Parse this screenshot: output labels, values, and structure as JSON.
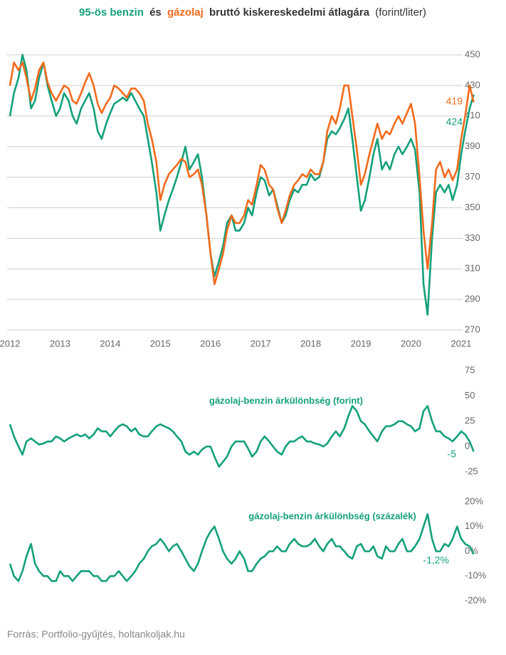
{
  "chart_data": [
    {
      "type": "line",
      "title": [
        "95-ös benzin",
        "és",
        "gázolaj",
        "bruttó kiskereskedelmi átlagára",
        "(forint/liter)"
      ],
      "x": [
        2012.0,
        2012.08,
        2012.17,
        2012.25,
        2012.33,
        2012.42,
        2012.5,
        2012.58,
        2012.67,
        2012.75,
        2012.83,
        2012.92,
        2013.0,
        2013.08,
        2013.17,
        2013.25,
        2013.33,
        2013.42,
        2013.5,
        2013.58,
        2013.67,
        2013.75,
        2013.83,
        2013.92,
        2014.0,
        2014.08,
        2014.17,
        2014.25,
        2014.33,
        2014.42,
        2014.5,
        2014.58,
        2014.67,
        2014.75,
        2014.83,
        2014.92,
        2015.0,
        2015.08,
        2015.17,
        2015.25,
        2015.33,
        2015.42,
        2015.5,
        2015.58,
        2015.67,
        2015.75,
        2015.83,
        2015.92,
        2016.0,
        2016.08,
        2016.17,
        2016.25,
        2016.33,
        2016.42,
        2016.5,
        2016.58,
        2016.67,
        2016.75,
        2016.83,
        2016.92,
        2017.0,
        2017.08,
        2017.17,
        2017.25,
        2017.33,
        2017.42,
        2017.5,
        2017.58,
        2017.67,
        2017.75,
        2017.83,
        2017.92,
        2018.0,
        2018.08,
        2018.17,
        2018.25,
        2018.33,
        2018.42,
        2018.5,
        2018.58,
        2018.67,
        2018.75,
        2018.83,
        2018.92,
        2019.0,
        2019.08,
        2019.17,
        2019.25,
        2019.33,
        2019.42,
        2019.5,
        2019.58,
        2019.67,
        2019.75,
        2019.83,
        2019.92,
        2020.0,
        2020.08,
        2020.17,
        2020.25,
        2020.33,
        2020.42,
        2020.5,
        2020.58,
        2020.67,
        2020.75,
        2020.83,
        2020.92,
        2021.0,
        2021.08,
        2021.17,
        2021.25
      ],
      "series": [
        {
          "name": "95-ös benzin",
          "color": "#13a07b",
          "end_label": 424,
          "values": [
            410,
            425,
            435,
            450,
            440,
            415,
            420,
            435,
            445,
            430,
            420,
            410,
            415,
            425,
            420,
            410,
            405,
            415,
            420,
            425,
            415,
            400,
            395,
            405,
            412,
            418,
            420,
            422,
            420,
            425,
            420,
            415,
            410,
            395,
            380,
            360,
            335,
            345,
            355,
            362,
            370,
            380,
            390,
            375,
            380,
            385,
            370,
            345,
            320,
            305,
            315,
            325,
            340,
            345,
            335,
            335,
            340,
            350,
            345,
            360,
            370,
            368,
            358,
            362,
            352,
            340,
            345,
            355,
            362,
            360,
            365,
            365,
            372,
            368,
            370,
            380,
            395,
            400,
            398,
            402,
            408,
            415,
            395,
            370,
            348,
            355,
            370,
            385,
            395,
            375,
            380,
            375,
            385,
            390,
            385,
            390,
            395,
            388,
            360,
            300,
            280,
            330,
            360,
            365,
            360,
            365,
            355,
            365,
            385,
            400,
            415,
            424
          ]
        },
        {
          "name": "gázolaj",
          "color": "#f26a1b",
          "end_label": 419,
          "values": [
            430,
            445,
            440,
            445,
            435,
            420,
            428,
            440,
            445,
            432,
            425,
            420,
            425,
            430,
            428,
            420,
            418,
            425,
            432,
            438,
            430,
            418,
            412,
            418,
            422,
            430,
            428,
            425,
            422,
            428,
            428,
            425,
            420,
            405,
            395,
            380,
            355,
            365,
            372,
            375,
            378,
            382,
            380,
            370,
            372,
            375,
            365,
            345,
            320,
            300,
            310,
            320,
            335,
            345,
            340,
            340,
            345,
            355,
            352,
            365,
            378,
            375,
            365,
            362,
            350,
            340,
            348,
            358,
            365,
            368,
            372,
            370,
            375,
            372,
            372,
            380,
            400,
            410,
            405,
            415,
            430,
            430,
            410,
            388,
            365,
            372,
            385,
            395,
            405,
            395,
            400,
            398,
            405,
            410,
            405,
            412,
            418,
            405,
            370,
            335,
            310,
            340,
            375,
            380,
            370,
            375,
            368,
            375,
            395,
            410,
            430,
            419
          ]
        }
      ],
      "xlim": [
        2012,
        2021.3
      ],
      "xticks": [
        2012,
        2013,
        2014,
        2015,
        2016,
        2017,
        2018,
        2019,
        2020,
        2021
      ],
      "ylim": [
        270,
        450
      ],
      "yticks": [
        270,
        290,
        310,
        330,
        350,
        370,
        390,
        410,
        430,
        450
      ],
      "grid": true
    },
    {
      "type": "line",
      "label": "gázolaj-benzin árkülönbség (forint)",
      "series": [
        {
          "name": "gázolaj-benzin árkülönbség (forint)",
          "color": "#13a07b",
          "end_label": -5,
          "values": [
            22,
            10,
            0,
            -8,
            5,
            8,
            5,
            2,
            3,
            5,
            5,
            10,
            8,
            5,
            8,
            10,
            12,
            10,
            12,
            8,
            12,
            18,
            15,
            15,
            10,
            15,
            20,
            22,
            20,
            15,
            18,
            12,
            10,
            10,
            15,
            20,
            22,
            20,
            18,
            15,
            10,
            5,
            -5,
            -8,
            -5,
            -8,
            -3,
            0,
            0,
            -10,
            -20,
            -15,
            -10,
            0,
            5,
            5,
            5,
            -2,
            -10,
            -5,
            5,
            10,
            5,
            0,
            -5,
            -8,
            0,
            5,
            5,
            8,
            10,
            5,
            5,
            3,
            2,
            0,
            3,
            10,
            15,
            10,
            18,
            30,
            40,
            35,
            25,
            22,
            15,
            10,
            5,
            15,
            20,
            20,
            22,
            25,
            25,
            22,
            20,
            15,
            18,
            35,
            40,
            25,
            15,
            15,
            10,
            8,
            5,
            10,
            15,
            12,
            5,
            -5
          ]
        }
      ],
      "xlim": [
        2012,
        2021.3
      ],
      "ylim": [
        -25,
        75
      ],
      "yticks": [
        -25,
        0,
        25,
        50,
        75
      ],
      "grid": false
    },
    {
      "type": "line",
      "label": "gázolaj-benzin árkülönbség (százalék)",
      "series": [
        {
          "name": "gázolaj-benzin árkülönbség (százalék)",
          "color": "#13a07b",
          "end_label": {
            "value": -1.2,
            "label": "-1,2%"
          },
          "values": [
            -5,
            -10,
            -12,
            -8,
            -2,
            3,
            -5,
            -8,
            -10,
            -10,
            -12,
            -12,
            -8,
            -10,
            -10,
            -12,
            -10,
            -8,
            -8,
            -8,
            -10,
            -10,
            -12,
            -12,
            -10,
            -10,
            -8,
            -10,
            -12,
            -10,
            -8,
            -5,
            -3,
            0,
            2,
            3,
            5,
            3,
            0,
            2,
            3,
            0,
            -3,
            -6,
            -8,
            -5,
            0,
            5,
            8,
            10,
            5,
            0,
            -3,
            -5,
            -3,
            0,
            -3,
            -8,
            -8,
            -5,
            -3,
            -2,
            0,
            0,
            2,
            0,
            0,
            3,
            5,
            3,
            2,
            2,
            3,
            5,
            2,
            0,
            3,
            5,
            2,
            2,
            0,
            -2,
            -3,
            2,
            3,
            0,
            0,
            2,
            -2,
            -3,
            2,
            0,
            0,
            3,
            5,
            0,
            0,
            2,
            5,
            10,
            15,
            5,
            0,
            0,
            3,
            2,
            5,
            10,
            5,
            3,
            2,
            -1.2
          ]
        }
      ],
      "xlim": [
        2012,
        2021.3
      ],
      "ylim": [
        -20,
        20
      ],
      "yticks": [
        {
          "value": -20,
          "label": "-20%"
        },
        {
          "value": -10,
          "label": "-10%"
        },
        {
          "value": 0,
          "label": "0%"
        },
        {
          "value": 10,
          "label": "10%"
        },
        {
          "value": 20,
          "label": "20%"
        }
      ],
      "grid": false
    }
  ],
  "source": "Forrás: Portfolio-gyűjtés, holtankoljak.hu"
}
